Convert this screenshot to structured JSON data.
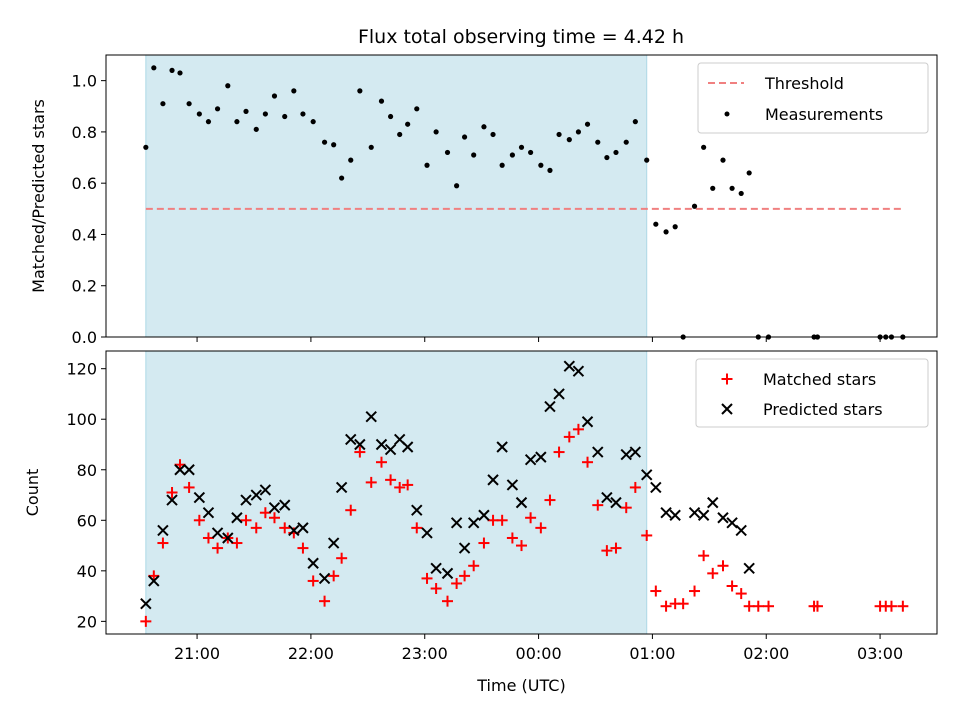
{
  "chart_data": {
    "title": "Flux total observing time = 4.42 h",
    "xlabel": "Time (UTC)",
    "x_ticks": [
      "21:00",
      "22:00",
      "23:00",
      "00:00",
      "01:00",
      "02:00",
      "03:00"
    ],
    "x_range_hours": [
      20.2,
      27.5
    ],
    "colors": {
      "shading": "#d4eaf1",
      "shading_edge": "#add8e6",
      "threshold": "#f08080",
      "matched": "#ff0000",
      "predicted": "#000000",
      "measurement": "#000000"
    },
    "panels": [
      {
        "type": "scatter",
        "ylabel": "Matched/Predicted stars",
        "ylim": [
          0.0,
          1.1
        ],
        "yticks": [
          0.0,
          0.2,
          0.4,
          0.6,
          0.8,
          1.0
        ],
        "ytick_labels": [
          "0.0",
          "0.2",
          "0.4",
          "0.6",
          "0.8",
          "1.0"
        ],
        "shaded_span": [
          20.55,
          24.95
        ],
        "threshold": {
          "value": 0.5,
          "x_range": [
            20.55,
            27.2
          ]
        },
        "legend": {
          "position": "top-right",
          "entries": [
            "Threshold",
            "Measurements"
          ]
        },
        "series": [
          {
            "name": "Measurements",
            "points": [
              [
                20.55,
                0.74
              ],
              [
                20.62,
                1.05
              ],
              [
                20.7,
                0.91
              ],
              [
                20.78,
                1.04
              ],
              [
                20.85,
                1.03
              ],
              [
                20.93,
                0.91
              ],
              [
                21.02,
                0.87
              ],
              [
                21.1,
                0.84
              ],
              [
                21.18,
                0.89
              ],
              [
                21.27,
                0.98
              ],
              [
                21.35,
                0.84
              ],
              [
                21.43,
                0.88
              ],
              [
                21.52,
                0.81
              ],
              [
                21.6,
                0.87
              ],
              [
                21.68,
                0.94
              ],
              [
                21.77,
                0.86
              ],
              [
                21.85,
                0.96
              ],
              [
                21.93,
                0.87
              ],
              [
                22.02,
                0.84
              ],
              [
                22.12,
                0.76
              ],
              [
                22.2,
                0.75
              ],
              [
                22.27,
                0.62
              ],
              [
                22.35,
                0.69
              ],
              [
                22.43,
                0.96
              ],
              [
                22.53,
                0.74
              ],
              [
                22.62,
                0.92
              ],
              [
                22.7,
                0.86
              ],
              [
                22.78,
                0.79
              ],
              [
                22.85,
                0.83
              ],
              [
                22.93,
                0.89
              ],
              [
                23.02,
                0.67
              ],
              [
                23.1,
                0.8
              ],
              [
                23.2,
                0.72
              ],
              [
                23.28,
                0.59
              ],
              [
                23.35,
                0.78
              ],
              [
                23.43,
                0.71
              ],
              [
                23.52,
                0.82
              ],
              [
                23.6,
                0.79
              ],
              [
                23.68,
                0.67
              ],
              [
                23.77,
                0.71
              ],
              [
                23.85,
                0.74
              ],
              [
                23.93,
                0.72
              ],
              [
                24.02,
                0.67
              ],
              [
                24.1,
                0.65
              ],
              [
                24.18,
                0.79
              ],
              [
                24.27,
                0.77
              ],
              [
                24.35,
                0.8
              ],
              [
                24.43,
                0.83
              ],
              [
                24.52,
                0.76
              ],
              [
                24.6,
                0.7
              ],
              [
                24.68,
                0.72
              ],
              [
                24.77,
                0.76
              ],
              [
                24.85,
                0.84
              ],
              [
                24.95,
                0.69
              ],
              [
                25.03,
                0.44
              ],
              [
                25.12,
                0.41
              ],
              [
                25.2,
                0.43
              ],
              [
                25.27,
                0.0
              ],
              [
                25.37,
                0.51
              ],
              [
                25.45,
                0.74
              ],
              [
                25.53,
                0.58
              ],
              [
                25.62,
                0.69
              ],
              [
                25.7,
                0.58
              ],
              [
                25.78,
                0.56
              ],
              [
                25.85,
                0.64
              ],
              [
                25.93,
                0.0
              ],
              [
                26.02,
                0.0
              ],
              [
                26.42,
                0.0
              ],
              [
                26.45,
                0.0
              ],
              [
                27.0,
                0.0
              ],
              [
                27.05,
                0.0
              ],
              [
                27.1,
                0.0
              ],
              [
                27.2,
                0.0
              ]
            ]
          }
        ]
      },
      {
        "type": "scatter",
        "ylabel": "Count",
        "ylim": [
          15,
          127
        ],
        "yticks": [
          20,
          40,
          60,
          80,
          100,
          120
        ],
        "ytick_labels": [
          "20",
          "40",
          "60",
          "80",
          "100",
          "120"
        ],
        "shaded_span": [
          20.55,
          24.95
        ],
        "legend": {
          "position": "top-right",
          "entries": [
            "Matched stars",
            "Predicted stars"
          ]
        },
        "series": [
          {
            "name": "Matched stars",
            "marker": "plus",
            "points": [
              [
                20.55,
                20
              ],
              [
                20.62,
                38
              ],
              [
                20.7,
                51
              ],
              [
                20.78,
                71
              ],
              [
                20.85,
                82
              ],
              [
                20.93,
                73
              ],
              [
                21.02,
                60
              ],
              [
                21.1,
                53
              ],
              [
                21.18,
                49
              ],
              [
                21.27,
                53
              ],
              [
                21.35,
                51
              ],
              [
                21.43,
                60
              ],
              [
                21.52,
                57
              ],
              [
                21.6,
                63
              ],
              [
                21.68,
                61
              ],
              [
                21.77,
                57
              ],
              [
                21.85,
                55
              ],
              [
                21.93,
                49
              ],
              [
                22.02,
                36
              ],
              [
                22.12,
                28
              ],
              [
                22.2,
                38
              ],
              [
                22.27,
                45
              ],
              [
                22.35,
                64
              ],
              [
                22.43,
                87
              ],
              [
                22.53,
                75
              ],
              [
                22.62,
                83
              ],
              [
                22.7,
                76
              ],
              [
                22.78,
                73
              ],
              [
                22.85,
                74
              ],
              [
                22.93,
                57
              ],
              [
                23.02,
                37
              ],
              [
                23.1,
                33
              ],
              [
                23.2,
                28
              ],
              [
                23.28,
                35
              ],
              [
                23.35,
                38
              ],
              [
                23.43,
                42
              ],
              [
                23.52,
                51
              ],
              [
                23.6,
                60
              ],
              [
                23.68,
                60
              ],
              [
                23.77,
                53
              ],
              [
                23.85,
                50
              ],
              [
                23.93,
                61
              ],
              [
                24.02,
                57
              ],
              [
                24.1,
                68
              ],
              [
                24.18,
                87
              ],
              [
                24.27,
                93
              ],
              [
                24.35,
                96
              ],
              [
                24.43,
                83
              ],
              [
                24.52,
                66
              ],
              [
                24.6,
                48
              ],
              [
                24.68,
                49
              ],
              [
                24.77,
                65
              ],
              [
                24.85,
                73
              ],
              [
                24.95,
                54
              ],
              [
                25.03,
                32
              ],
              [
                25.12,
                26
              ],
              [
                25.2,
                27
              ],
              [
                25.27,
                27
              ],
              [
                25.37,
                32
              ],
              [
                25.45,
                46
              ],
              [
                25.53,
                39
              ],
              [
                25.62,
                42
              ],
              [
                25.7,
                34
              ],
              [
                25.78,
                31
              ],
              [
                25.85,
                26
              ],
              [
                25.93,
                26
              ],
              [
                26.02,
                26
              ],
              [
                26.42,
                26
              ],
              [
                26.45,
                26
              ],
              [
                27.0,
                26
              ],
              [
                27.05,
                26
              ],
              [
                27.1,
                26
              ],
              [
                27.2,
                26
              ]
            ]
          },
          {
            "name": "Predicted stars",
            "marker": "x",
            "points": [
              [
                20.55,
                27
              ],
              [
                20.62,
                36
              ],
              [
                20.7,
                56
              ],
              [
                20.78,
                68
              ],
              [
                20.85,
                80
              ],
              [
                20.93,
                80
              ],
              [
                21.02,
                69
              ],
              [
                21.1,
                63
              ],
              [
                21.18,
                55
              ],
              [
                21.27,
                53
              ],
              [
                21.35,
                61
              ],
              [
                21.43,
                68
              ],
              [
                21.52,
                70
              ],
              [
                21.6,
                72
              ],
              [
                21.68,
                65
              ],
              [
                21.77,
                66
              ],
              [
                21.85,
                56
              ],
              [
                21.93,
                57
              ],
              [
                22.02,
                43
              ],
              [
                22.12,
                37
              ],
              [
                22.2,
                51
              ],
              [
                22.27,
                73
              ],
              [
                22.35,
                92
              ],
              [
                22.43,
                90
              ],
              [
                22.53,
                101
              ],
              [
                22.62,
                90
              ],
              [
                22.7,
                88
              ],
              [
                22.78,
                92
              ],
              [
                22.85,
                89
              ],
              [
                22.93,
                64
              ],
              [
                23.02,
                55
              ],
              [
                23.1,
                41
              ],
              [
                23.2,
                39
              ],
              [
                23.28,
                59
              ],
              [
                23.35,
                49
              ],
              [
                23.43,
                59
              ],
              [
                23.52,
                62
              ],
              [
                23.6,
                76
              ],
              [
                23.68,
                89
              ],
              [
                23.77,
                74
              ],
              [
                23.85,
                67
              ],
              [
                23.93,
                84
              ],
              [
                24.02,
                85
              ],
              [
                24.1,
                105
              ],
              [
                24.18,
                110
              ],
              [
                24.27,
                121
              ],
              [
                24.35,
                119
              ],
              [
                24.43,
                99
              ],
              [
                24.52,
                87
              ],
              [
                24.6,
                69
              ],
              [
                24.68,
                67
              ],
              [
                24.77,
                86
              ],
              [
                24.85,
                87
              ],
              [
                24.95,
                78
              ],
              [
                25.03,
                73
              ],
              [
                25.12,
                63
              ],
              [
                25.2,
                62
              ],
              [
                25.37,
                63
              ],
              [
                25.45,
                62
              ],
              [
                25.53,
                67
              ],
              [
                25.62,
                61
              ],
              [
                25.7,
                59
              ],
              [
                25.78,
                56
              ],
              [
                25.85,
                41
              ]
            ]
          }
        ]
      }
    ]
  }
}
